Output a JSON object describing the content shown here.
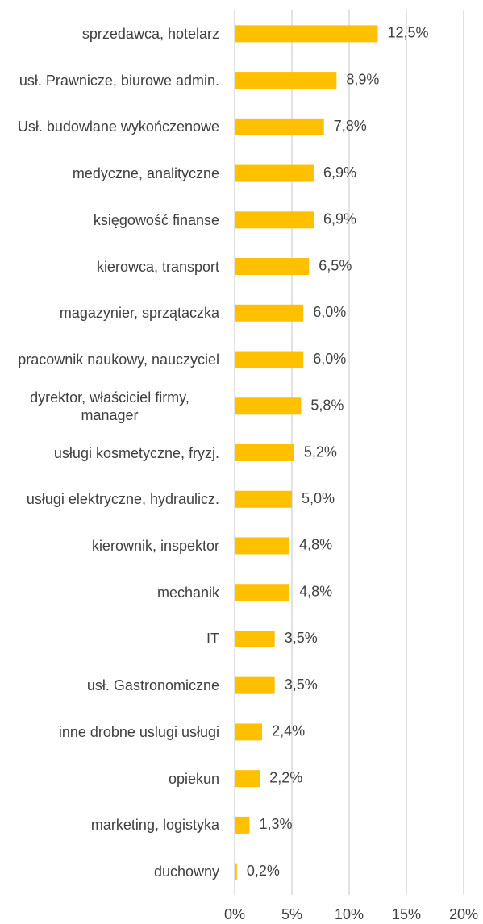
{
  "chart_data": {
    "type": "barh",
    "categories": [
      "sprzedawca, hotelarz",
      "usł. Prawnicze, biurowe admin.",
      "Usł. budowlane wykończenowe",
      "medyczne, analityczne",
      "księgowość finanse",
      "kierowca, transport",
      "magazynier, sprzątaczka",
      "pracownik naukowy, nauczyciel",
      "dyrektor, właściciel firmy, manager",
      "usługi kosmetyczne, fryzj.",
      "usługi elektryczne, hydraulicz.",
      "kierownik, inspektor",
      "mechanik",
      "IT",
      "usł. Gastronomiczne",
      "inne drobne uslugi  usługi",
      "opiekun",
      "marketing, logistyka",
      "duchowny"
    ],
    "values": [
      12.5,
      8.9,
      7.8,
      6.9,
      6.9,
      6.5,
      6.0,
      6.0,
      5.8,
      5.2,
      5.0,
      4.8,
      4.8,
      3.5,
      3.5,
      2.4,
      2.2,
      1.3,
      0.2
    ],
    "value_labels": [
      "12,5%",
      "8,9%",
      "7,8%",
      "6,9%",
      "6,9%",
      "6,5%",
      "6,0%",
      "6,0%",
      "5,8%",
      "5,2%",
      "5,0%",
      "4,8%",
      "4,8%",
      "3,5%",
      "3,5%",
      "2,4%",
      "2,2%",
      "1,3%",
      "0,2%"
    ],
    "color": "#ffc000",
    "xlim": [
      0,
      20
    ],
    "xticks": [
      {
        "value": 0,
        "label": "0%"
      },
      {
        "value": 5,
        "label": "5%"
      },
      {
        "value": 10,
        "label": "10%"
      },
      {
        "value": 15,
        "label": "15%"
      },
      {
        "value": 20,
        "label": "20%"
      }
    ],
    "grid": true
  }
}
